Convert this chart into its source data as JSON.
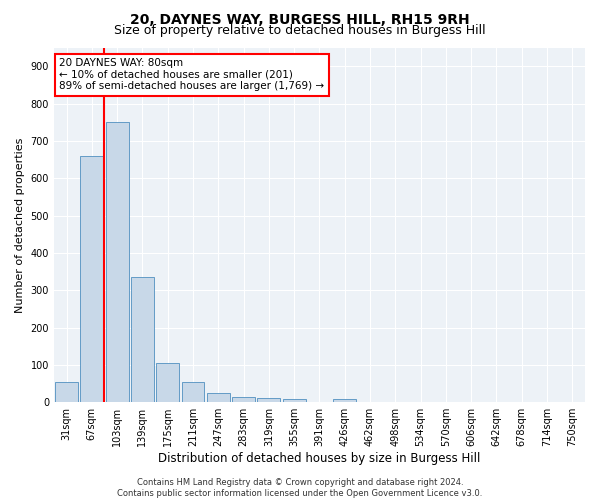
{
  "title": "20, DAYNES WAY, BURGESS HILL, RH15 9RH",
  "subtitle": "Size of property relative to detached houses in Burgess Hill",
  "xlabel": "Distribution of detached houses by size in Burgess Hill",
  "ylabel": "Number of detached properties",
  "footer_line1": "Contains HM Land Registry data © Crown copyright and database right 2024.",
  "footer_line2": "Contains public sector information licensed under the Open Government Licence v3.0.",
  "categories": [
    "31sqm",
    "67sqm",
    "103sqm",
    "139sqm",
    "175sqm",
    "211sqm",
    "247sqm",
    "283sqm",
    "319sqm",
    "355sqm",
    "391sqm",
    "426sqm",
    "462sqm",
    "498sqm",
    "534sqm",
    "570sqm",
    "606sqm",
    "642sqm",
    "678sqm",
    "714sqm",
    "750sqm"
  ],
  "bar_values": [
    55,
    660,
    750,
    335,
    105,
    55,
    25,
    15,
    12,
    8,
    0,
    8,
    0,
    0,
    0,
    0,
    0,
    0,
    0,
    0,
    0
  ],
  "bar_color": "#c8d8e8",
  "bar_edge_color": "#5090c0",
  "annotation_line1": "20 DAYNES WAY: 80sqm",
  "annotation_line2": "← 10% of detached houses are smaller (201)",
  "annotation_line3": "89% of semi-detached houses are larger (1,769) →",
  "annotation_box_color": "white",
  "annotation_box_edge_color": "red",
  "vline_x": 1.5,
  "vline_color": "red",
  "ylim": [
    0,
    950
  ],
  "yticks": [
    0,
    100,
    200,
    300,
    400,
    500,
    600,
    700,
    800,
    900
  ],
  "background_color": "#edf2f7",
  "grid_color": "white",
  "title_fontsize": 10,
  "subtitle_fontsize": 9,
  "tick_fontsize": 7,
  "ylabel_fontsize": 8,
  "xlabel_fontsize": 8.5,
  "annotation_fontsize": 7.5,
  "footer_fontsize": 6
}
